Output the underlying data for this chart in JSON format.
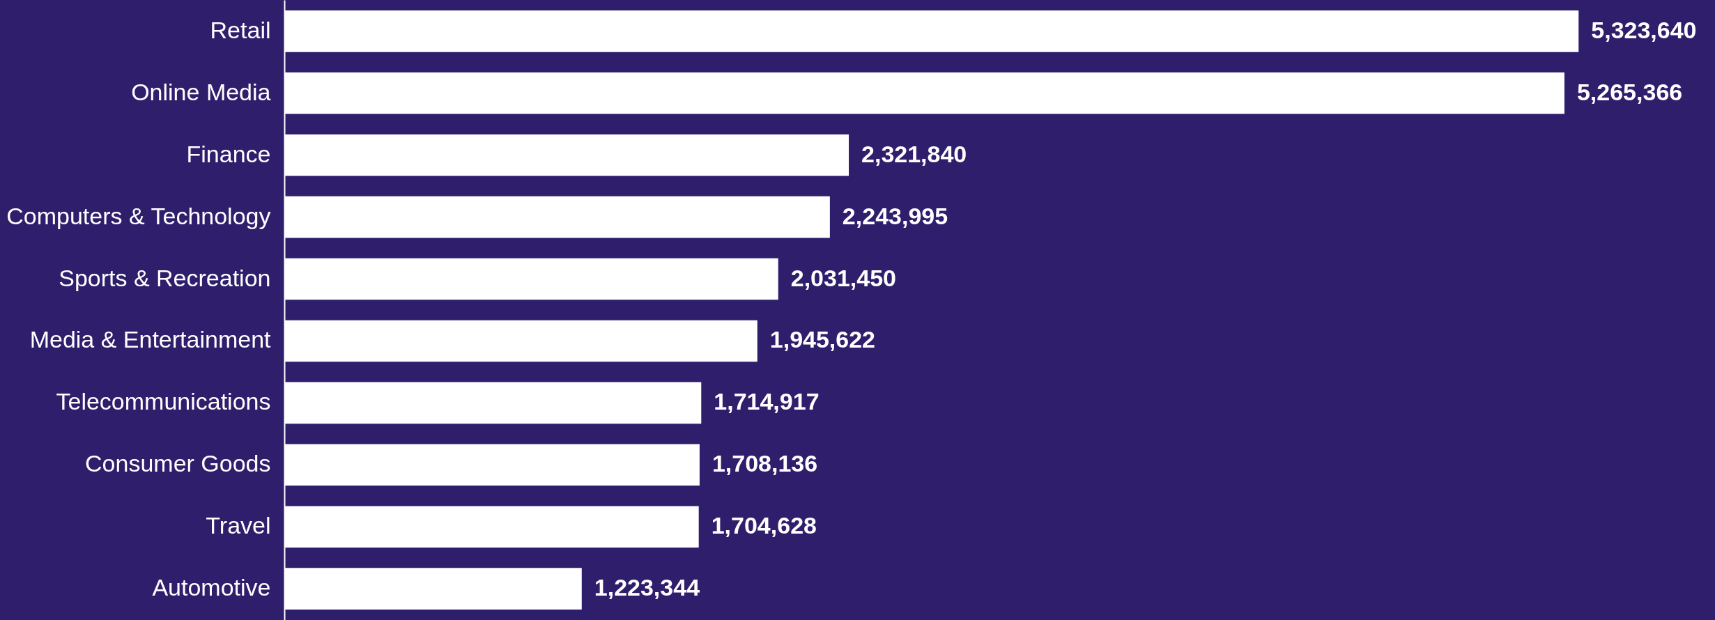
{
  "chart_data": {
    "type": "bar",
    "orientation": "horizontal",
    "categories": [
      "Retail",
      "Online Media",
      "Finance",
      "Computers & Technology",
      "Sports & Recreation",
      "Media & Entertainment",
      "Telecommunications",
      "Consumer Goods",
      "Travel",
      "Automotive"
    ],
    "values": [
      5323640,
      5265366,
      2321840,
      2243995,
      2031450,
      1945622,
      1714917,
      1708136,
      1704628,
      1223344
    ],
    "value_labels": [
      "5,323,640",
      "5,265,366",
      "2,321,840",
      "2,243,995",
      "2,031,450",
      "1,945,622",
      "1,714,917",
      "1,708,136",
      "1,704,628",
      "1,223,344"
    ],
    "color": "#ffffff"
  }
}
